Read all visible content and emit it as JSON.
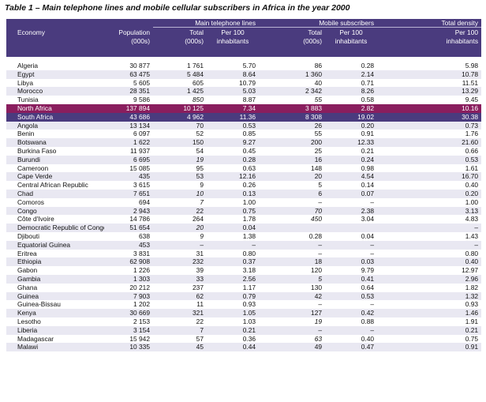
{
  "title": "Table 1 – Main telephone lines and mobile cellular subscribers in Africa in the year 2000",
  "groups": {
    "main": "Main telephone lines",
    "mobile": "Mobile subscribers",
    "density": "Total density"
  },
  "headers": {
    "economy": "Economy",
    "population": "Population",
    "population_unit": "(000s)",
    "total": "Total",
    "total_unit": "(000s)",
    "per100": "Per 100",
    "per100_unit": "inhabitants"
  },
  "rows": [
    {
      "economy": "Algeria",
      "population": "30 877",
      "main_total": "1 761",
      "main_per100": "5.70",
      "mob_total": "86",
      "mob_per100": "0.28",
      "density": "5.98"
    },
    {
      "economy": "Egypt",
      "population": "63 475",
      "main_total": "5 484",
      "main_per100": "8.64",
      "mob_total": "1 360",
      "mob_per100": "2.14",
      "density": "10.78"
    },
    {
      "economy": "Libya",
      "population": "5 605",
      "main_total": "605",
      "main_per100": "10.79",
      "mob_total": "40",
      "mob_per100": "0.71",
      "density": "11.51"
    },
    {
      "economy": "Morocco",
      "population": "28 351",
      "main_total": "1 425",
      "main_per100": "5.03",
      "mob_total": "2 342",
      "mob_per100": "8.26",
      "density": "13.29"
    },
    {
      "economy": "Tunisia",
      "population": "9 586",
      "main_total": "850",
      "main_per100": "8.87",
      "mob_total": "55",
      "mob_per100": "0.58",
      "density": "9.45",
      "it_main": true,
      "it_mob": true
    },
    {
      "economy": "North Africa",
      "population": "137 894",
      "main_total": "10 125",
      "main_per100": "7.34",
      "mob_total": "3 883",
      "mob_per100": "2.82",
      "density": "10.16",
      "hl": "na"
    },
    {
      "economy": "South Africa",
      "population": "43 686",
      "main_total": "4 962",
      "main_per100": "11.36",
      "mob_total": "8 308",
      "mob_per100": "19.02",
      "density": "30.38",
      "hl": "sa"
    },
    {
      "economy": "Angola",
      "population": "13 134",
      "main_total": "70",
      "main_per100": "0.53",
      "mob_total": "26",
      "mob_per100": "0.20",
      "density": "0.73"
    },
    {
      "economy": "Benin",
      "population": "6 097",
      "main_total": "52",
      "main_per100": "0.85",
      "mob_total": "55",
      "mob_per100": "0.91",
      "density": "1.76"
    },
    {
      "economy": "Botswana",
      "population": "1 622",
      "main_total": "150",
      "main_per100": "9.27",
      "mob_total": "200",
      "mob_per100": "12.33",
      "density": "21.60"
    },
    {
      "economy": "Burkina Faso",
      "population": "11 937",
      "main_total": "54",
      "main_per100": "0.45",
      "mob_total": "25",
      "mob_per100": "0.21",
      "density": "0.66"
    },
    {
      "economy": "Burundi",
      "population": "6 695",
      "main_total": "19",
      "main_per100": "0.28",
      "mob_total": "16",
      "mob_per100": "0.24",
      "density": "0.53",
      "it_main": true
    },
    {
      "economy": "Cameroon",
      "population": "15 085",
      "main_total": "95",
      "main_per100": "0.63",
      "mob_total": "148",
      "mob_per100": "0.98",
      "density": "1.61"
    },
    {
      "economy": "Cape Verde",
      "population": "435",
      "main_total": "53",
      "main_per100": "12.16",
      "mob_total": "20",
      "mob_per100": "4.54",
      "density": "16.70"
    },
    {
      "economy": "Central African Republic",
      "population": "3 615",
      "main_total": "9",
      "main_per100": "0.26",
      "mob_total": "5",
      "mob_per100": "0.14",
      "density": "0.40"
    },
    {
      "economy": "Chad",
      "population": "7 651",
      "main_total": "10",
      "main_per100": "0.13",
      "mob_total": "6",
      "mob_per100": "0.07",
      "density": "0.20",
      "it_main": true
    },
    {
      "economy": "Comoros",
      "population": "694",
      "main_total": "7",
      "main_per100": "1.00",
      "mob_total": "–",
      "mob_per100": "–",
      "density": "1.00",
      "it_main": true
    },
    {
      "economy": "Congo",
      "population": "2 943",
      "main_total": "22",
      "main_per100": "0.75",
      "mob_total": "70",
      "mob_per100": "2.38",
      "density": "3.13",
      "it_mob": true
    },
    {
      "economy": "Côte d'Ivoire",
      "population": "14 786",
      "main_total": "264",
      "main_per100": "1.78",
      "mob_total": "450",
      "mob_per100": "3.04",
      "density": "4.83",
      "it_mob": true
    },
    {
      "economy": "Democratic Republic of Congo",
      "population": "51 654",
      "main_total": "20",
      "main_per100": "0.04",
      "mob_total": "",
      "mob_per100": "",
      "density": "–",
      "it_main": true
    },
    {
      "economy": "Djibouti",
      "population": "638",
      "main_total": "9",
      "main_per100": "1.38",
      "mob_total": "0.28",
      "mob_per100": "0.04",
      "density": "1.43",
      "it_main": true
    },
    {
      "economy": "Equatorial Guinea",
      "population": "453",
      "main_total": "–",
      "main_per100": "–",
      "mob_total": "–",
      "mob_per100": "–",
      "density": "–"
    },
    {
      "economy": "Eritrea",
      "population": "3 831",
      "main_total": "31",
      "main_per100": "0.80",
      "mob_total": "–",
      "mob_per100": "–",
      "density": "0.80"
    },
    {
      "economy": "Ethiopia",
      "population": "62 908",
      "main_total": "232",
      "main_per100": "0.37",
      "mob_total": "18",
      "mob_per100": "0.03",
      "density": "0.40"
    },
    {
      "economy": "Gabon",
      "population": "1 226",
      "main_total": "39",
      "main_per100": "3.18",
      "mob_total": "120",
      "mob_per100": "9.79",
      "density": "12.97"
    },
    {
      "economy": "Gambia",
      "population": "1 303",
      "main_total": "33",
      "main_per100": "2.56",
      "mob_total": "5",
      "mob_per100": "0.41",
      "density": "2.96",
      "it_mob": true
    },
    {
      "economy": "Ghana",
      "population": "20 212",
      "main_total": "237",
      "main_per100": "1.17",
      "mob_total": "130",
      "mob_per100": "0.64",
      "density": "1.82"
    },
    {
      "economy": "Guinea",
      "population": "7 903",
      "main_total": "62",
      "main_per100": "0.79",
      "mob_total": "42",
      "mob_per100": "0.53",
      "density": "1.32"
    },
    {
      "economy": "Guinea-Bissau",
      "population": "1 202",
      "main_total": "11",
      "main_per100": "0.93",
      "mob_total": "–",
      "mob_per100": "–",
      "density": "0.93"
    },
    {
      "economy": "Kenya",
      "population": "30 669",
      "main_total": "321",
      "main_per100": "1.05",
      "mob_total": "127",
      "mob_per100": "0.42",
      "density": "1.46"
    },
    {
      "economy": "Lesotho",
      "population": "2 153",
      "main_total": "22",
      "main_per100": "1.03",
      "mob_total": "19",
      "mob_per100": "0.88",
      "density": "1.91",
      "it_mob": true
    },
    {
      "economy": "Liberia",
      "population": "3 154",
      "main_total": "7",
      "main_per100": "0.21",
      "mob_total": "–",
      "mob_per100": "–",
      "density": "0.21"
    },
    {
      "economy": "Madagascar",
      "population": "15 942",
      "main_total": "57",
      "main_per100": "0.36",
      "mob_total": "63",
      "mob_per100": "0.40",
      "density": "0.75",
      "it_mob": true
    },
    {
      "economy": "Malawi",
      "population": "10 335",
      "main_total": "45",
      "main_per100": "0.44",
      "mob_total": "49",
      "mob_per100": "0.47",
      "density": "0.91"
    }
  ]
}
